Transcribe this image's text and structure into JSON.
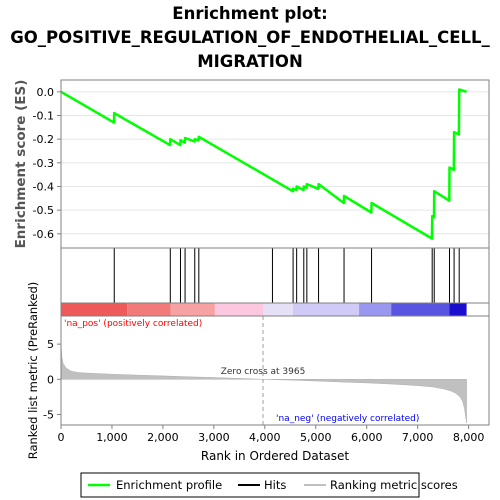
{
  "title_lines": [
    "Enrichment plot:",
    "GO_POSITIVE_REGULATION_OF_ENDOTHELIAL_CELL_",
    "MIGRATION"
  ],
  "colors": {
    "enrichment": "#00ff00",
    "hits": "#000000",
    "ranking": "#c0c0c0",
    "pos_label": "#ff0000",
    "neg_label": "#0000ff",
    "zero_cross_line": "#a0a0a0"
  },
  "legend": {
    "enrichment_label": "Enrichment profile",
    "hits_label": "Hits",
    "ranking_label": "Ranking metric scores"
  },
  "annotations": {
    "pos_label": "'na_pos' (positively correlated)",
    "neg_label": "'na_neg' (negatively correlated)",
    "zero_cross": "Zero cross at 3965"
  },
  "chart_data": {
    "type": "line",
    "xlabel": "Rank in Ordered Dataset",
    "x_ticks": [
      0,
      1000,
      2000,
      3000,
      4000,
      5000,
      6000,
      7000,
      8000
    ],
    "xlim": [
      0,
      8400
    ],
    "n_genes": 7960,
    "zero_cross": 3965,
    "enrichment": {
      "ylabel": "Enrichment score (ES)",
      "ylim": [
        -0.66,
        0.05
      ],
      "y_ticks": [
        0.0,
        -0.1,
        -0.2,
        -0.3,
        -0.4,
        -0.5,
        -0.6
      ],
      "y_tick_labels": [
        "0.0",
        "-0.1",
        "-0.2",
        "-0.3",
        "-0.4",
        "-0.5",
        "-0.6"
      ],
      "points": [
        [
          0,
          0.0
        ],
        [
          1040,
          -0.13
        ],
        [
          1045,
          -0.09
        ],
        [
          2140,
          -0.225
        ],
        [
          2145,
          -0.2
        ],
        [
          2340,
          -0.225
        ],
        [
          2345,
          -0.205
        ],
        [
          2430,
          -0.215
        ],
        [
          2435,
          -0.195
        ],
        [
          2620,
          -0.21
        ],
        [
          2625,
          -0.2
        ],
        [
          2700,
          -0.205
        ],
        [
          2705,
          -0.19
        ],
        [
          4150,
          -0.37
        ],
        [
          4550,
          -0.42
        ],
        [
          4555,
          -0.41
        ],
        [
          4620,
          -0.415
        ],
        [
          4625,
          -0.4
        ],
        [
          4760,
          -0.415
        ],
        [
          4765,
          -0.4
        ],
        [
          4820,
          -0.405
        ],
        [
          4825,
          -0.39
        ],
        [
          5050,
          -0.41
        ],
        [
          5055,
          -0.39
        ],
        [
          5550,
          -0.47
        ],
        [
          5555,
          -0.44
        ],
        [
          6090,
          -0.51
        ],
        [
          6095,
          -0.47
        ],
        [
          7280,
          -0.62
        ],
        [
          7285,
          -0.525
        ],
        [
          7320,
          -0.53
        ],
        [
          7325,
          -0.42
        ],
        [
          7620,
          -0.46
        ],
        [
          7625,
          -0.32
        ],
        [
          7710,
          -0.33
        ],
        [
          7715,
          -0.17
        ],
        [
          7810,
          -0.18
        ],
        [
          7815,
          0.01
        ],
        [
          7960,
          0.0
        ]
      ]
    },
    "hits": [
      1045,
      2145,
      2345,
      2435,
      2625,
      2705,
      4150,
      4555,
      4625,
      4765,
      4825,
      5055,
      5555,
      6095,
      7285,
      7325,
      7625,
      7715,
      7815
    ],
    "ranking": {
      "ylabel": "Ranked list metric (PreRanked)",
      "ylim": [
        -6.5,
        9
      ],
      "y_ticks": [
        5,
        0,
        -5
      ],
      "y_tick_labels": [
        "5",
        "0",
        "-5"
      ],
      "profile": [
        [
          0,
          5.2
        ],
        [
          15,
          3.2
        ],
        [
          40,
          2.3
        ],
        [
          100,
          1.6
        ],
        [
          200,
          1.15
        ],
        [
          350,
          0.95
        ],
        [
          600,
          0.85
        ],
        [
          1000,
          0.72
        ],
        [
          1500,
          0.6
        ],
        [
          2000,
          0.48
        ],
        [
          2500,
          0.36
        ],
        [
          3000,
          0.25
        ],
        [
          3500,
          0.12
        ],
        [
          3965,
          0.0
        ],
        [
          4500,
          -0.12
        ],
        [
          5000,
          -0.25
        ],
        [
          5500,
          -0.38
        ],
        [
          6000,
          -0.52
        ],
        [
          6500,
          -0.68
        ],
        [
          7000,
          -0.9
        ],
        [
          7300,
          -1.1
        ],
        [
          7500,
          -1.35
        ],
        [
          7650,
          -1.65
        ],
        [
          7750,
          -2.0
        ],
        [
          7830,
          -2.5
        ],
        [
          7880,
          -3.1
        ],
        [
          7920,
          -4.2
        ],
        [
          7945,
          -5.5
        ],
        [
          7960,
          -6.2
        ]
      ]
    },
    "color_bar": [
      {
        "from": 0,
        "to": 1300,
        "color": "#ee5a5a"
      },
      {
        "from": 1300,
        "to": 2150,
        "color": "#f27a7a"
      },
      {
        "from": 2150,
        "to": 3020,
        "color": "#f6a2a2"
      },
      {
        "from": 3020,
        "to": 3965,
        "color": "#fbc8e0"
      },
      {
        "from": 3965,
        "to": 4550,
        "color": "#e6e0f6"
      },
      {
        "from": 4550,
        "to": 5850,
        "color": "#cfcaf6"
      },
      {
        "from": 5850,
        "to": 6480,
        "color": "#9a97f0"
      },
      {
        "from": 6480,
        "to": 7620,
        "color": "#5a55e0"
      },
      {
        "from": 7620,
        "to": 7960,
        "color": "#1a0ecc"
      }
    ]
  }
}
